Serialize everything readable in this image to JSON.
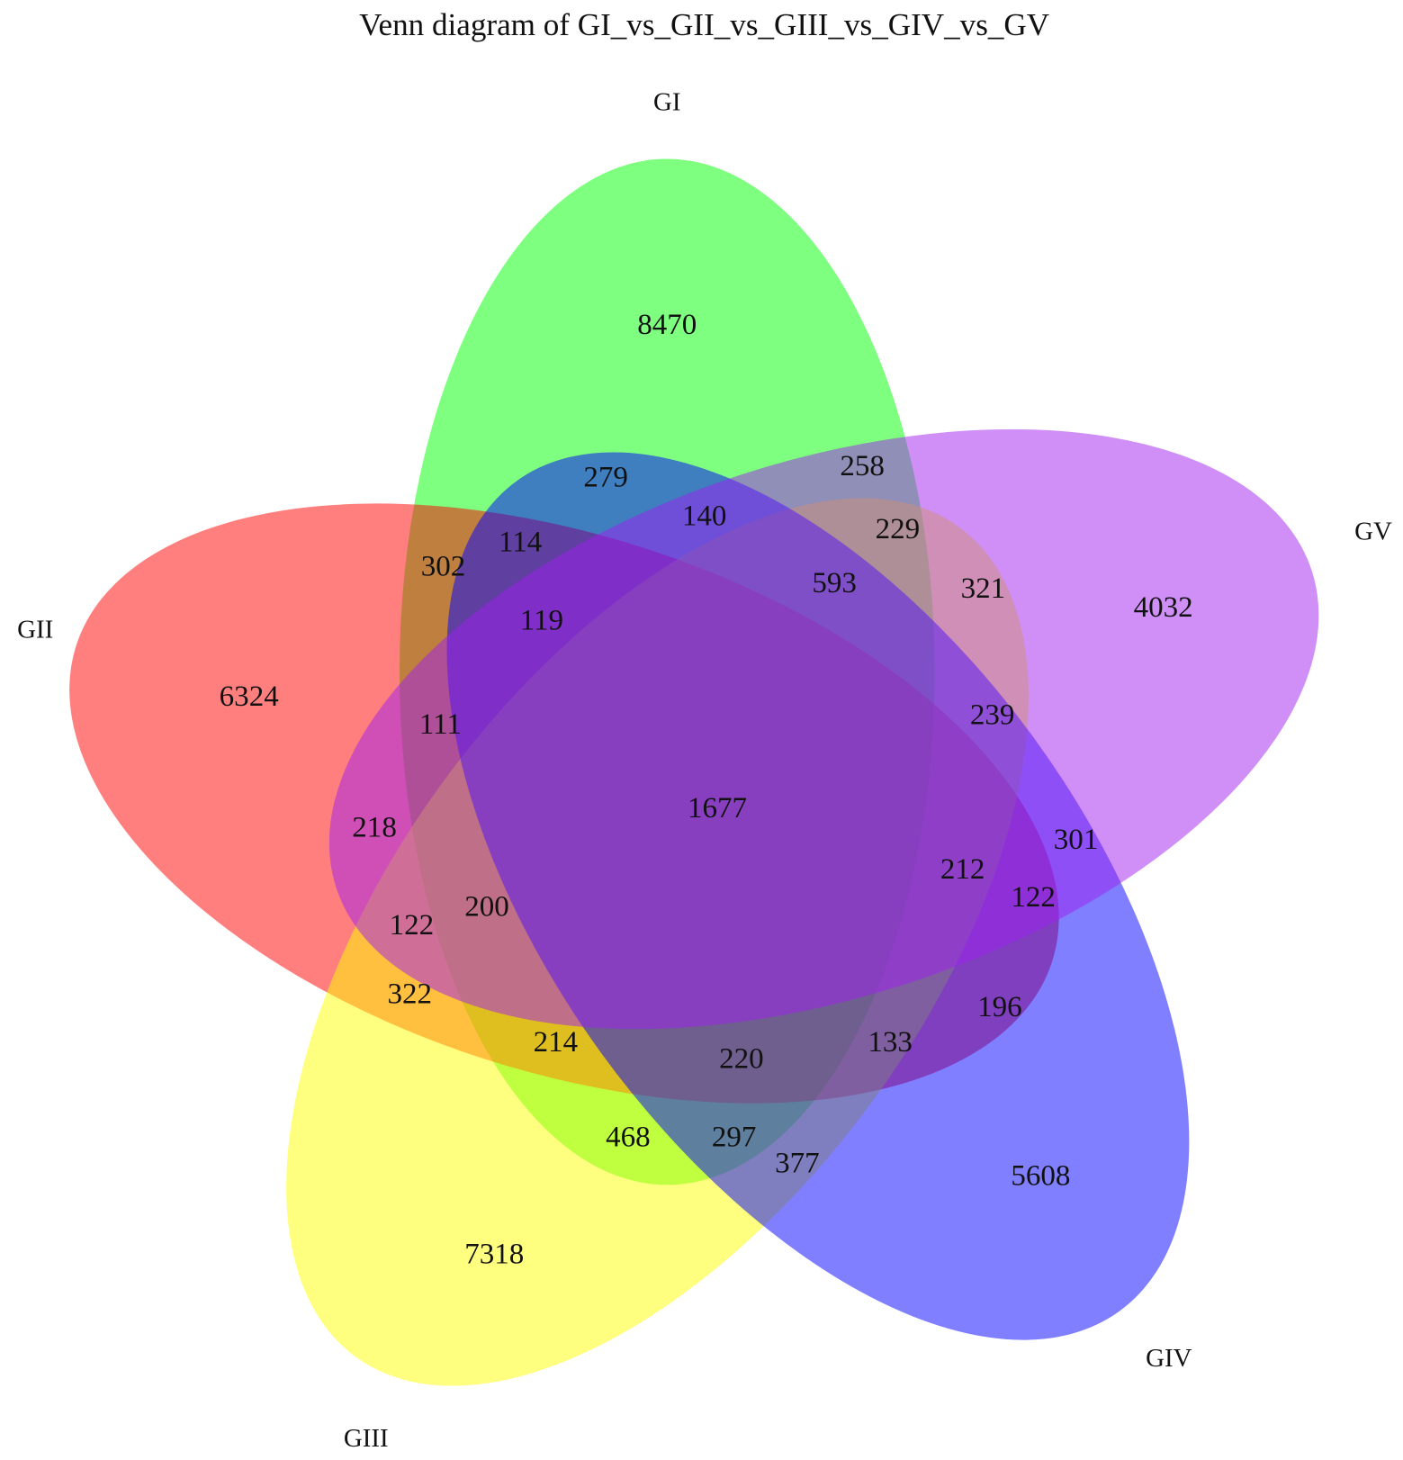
{
  "title": "Venn diagram of GI_vs_GII_vs_GIII_vs_GIV_vs_GV",
  "sets": [
    {
      "label": "GI",
      "color": "rgba(0,255,0,0.5)"
    },
    {
      "label": "GII",
      "color": "rgba(255,0,0,0.5)"
    },
    {
      "label": "GIII",
      "color": "rgba(255,255,0,0.5)"
    },
    {
      "label": "GIV",
      "color": "rgba(0,0,255,0.5)"
    },
    {
      "label": "GV",
      "color": "rgba(160,32,240,0.5)"
    }
  ],
  "regions": [
    "8470",
    "279",
    "258",
    "140",
    "114",
    "229",
    "302",
    "593",
    "321",
    "4032",
    "119",
    "6324",
    "111",
    "239",
    "1677",
    "218",
    "301",
    "212",
    "122",
    "200",
    "122",
    "322",
    "196",
    "214",
    "133",
    "220",
    "468",
    "297",
    "377",
    "5608",
    "7318"
  ]
}
